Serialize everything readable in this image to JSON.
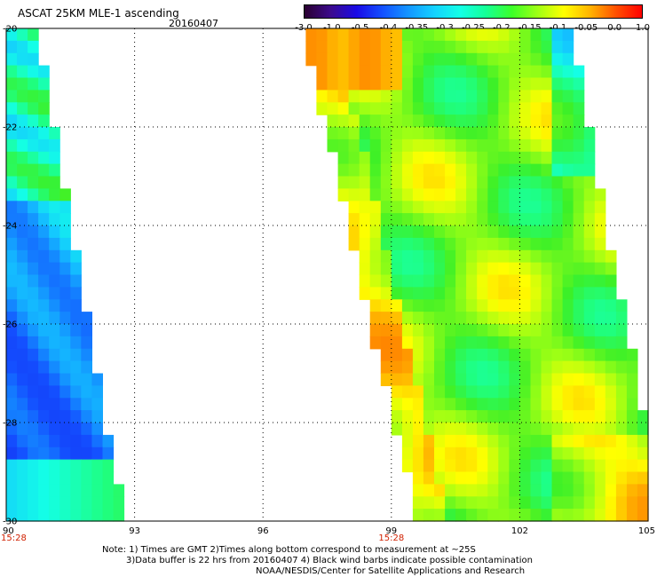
{
  "header": {
    "title": "ASCAT 25KM MLE-1 ascending",
    "date": "20160407"
  },
  "colorbar": {
    "labels": [
      "-3.0",
      "-1.0",
      "-0.5",
      "-0.4",
      "-0.35",
      "-0.3",
      "-0.25",
      "-0.2",
      "-0.15",
      "-0.1",
      "-0.05",
      "0.0",
      "1.0"
    ],
    "colors": [
      "#2a0030",
      "#3c0a8c",
      "#1a0ae6",
      "#1450ff",
      "#1496ff",
      "#14d2ff",
      "#14ffe6",
      "#14ff96",
      "#3cff28",
      "#a0ff14",
      "#ffff00",
      "#ffb400",
      "#ff5000",
      "#ff0000"
    ]
  },
  "notes": {
    "line1": "Note: 1) Times are GMT 2)Times along bottom correspond to measurement at ~25S",
    "line2": "3)Data buffer is 22 hrs from 20160407 4) Black wind barbs indicate possible contamination",
    "line3": "NOAA/NESDIS/Center for Satellite Applications and Research"
  },
  "chart_data": {
    "type": "heatmap",
    "title": "ASCAT 25KM MLE-1 ascending",
    "xlim": [
      90,
      105
    ],
    "ylim": [
      -30,
      -20
    ],
    "x_ticks": [
      "90",
      "93",
      "96",
      "99",
      "102",
      "105"
    ],
    "y_ticks": [
      "-20",
      "-22",
      "-24",
      "-26",
      "-28",
      "-30"
    ],
    "time_labels": [
      {
        "x": 90,
        "text": "15:28"
      },
      {
        "x": 99,
        "text": "15:28"
      }
    ],
    "grid": true,
    "colorbar_labels": [
      "-3.0",
      "-1.0",
      "-0.5",
      "-0.4",
      "-0.35",
      "-0.3",
      "-0.25",
      "-0.2",
      "-0.15",
      "-0.1",
      "-0.05",
      "0.0",
      "1.0"
    ],
    "swaths": [
      {
        "name": "west",
        "left_edge": [
          [
            -20,
            90.0
          ],
          [
            -30,
            90.0
          ]
        ],
        "right_edge": [
          [
            -20,
            90.6
          ],
          [
            -22.5,
            91.1
          ],
          [
            -24,
            91.4
          ],
          [
            -26,
            91.8
          ],
          [
            -28,
            92.2
          ],
          [
            -29.5,
            92.6
          ],
          [
            -30,
            92.7
          ]
        ]
      },
      {
        "name": "east",
        "left_edge": [
          [
            -20,
            97.0
          ],
          [
            -22,
            97.6
          ],
          [
            -24,
            98.1
          ],
          [
            -26,
            98.6
          ],
          [
            -28,
            99.2
          ],
          [
            -29.5,
            99.6
          ],
          [
            -30,
            99.6
          ]
        ],
        "right_edge": [
          [
            -20,
            103.1
          ],
          [
            -22,
            103.5
          ],
          [
            -24,
            103.9
          ],
          [
            -26,
            104.4
          ],
          [
            -28,
            104.8
          ],
          [
            -30,
            105.0
          ]
        ]
      }
    ]
  }
}
